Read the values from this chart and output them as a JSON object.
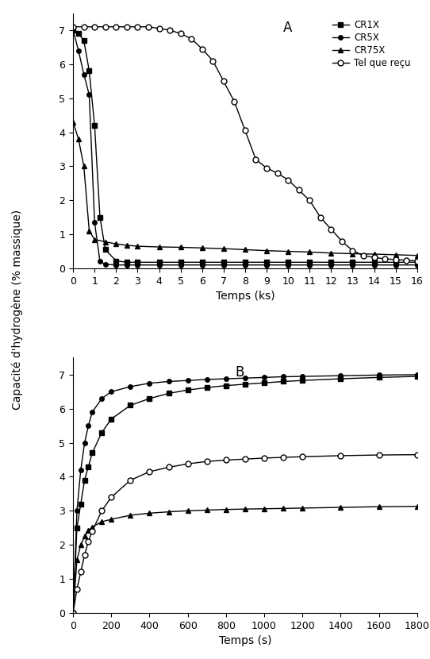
{
  "panel_A_label": "A",
  "panel_B_label": "B",
  "ylabel": "Capacité d'hydrogène (% massique)",
  "xlabel_A": "Temps (ks)",
  "xlabel_B": "Temps (s)",
  "legend_labels": [
    "CR1X",
    "CR5X",
    "CR75X",
    "Tel que reçu"
  ],
  "A": {
    "xlim": [
      0,
      16
    ],
    "ylim": [
      0,
      7.5
    ],
    "xticks": [
      0,
      1,
      2,
      3,
      4,
      5,
      6,
      7,
      8,
      9,
      10,
      11,
      12,
      13,
      14,
      15,
      16
    ],
    "yticks": [
      0,
      1,
      2,
      3,
      4,
      5,
      6,
      7
    ],
    "CR1X": {
      "x": [
        0,
        0.25,
        0.5,
        0.75,
        1.0,
        1.25,
        1.5,
        2.0,
        2.5,
        3.0,
        4.0,
        5.0,
        6.0,
        7.0,
        8.0,
        9.0,
        10.0,
        11.0,
        12.0,
        13.0,
        14.0,
        15.0,
        16.0
      ],
      "y": [
        7.0,
        6.9,
        6.7,
        5.8,
        4.2,
        1.5,
        0.55,
        0.22,
        0.18,
        0.18,
        0.18,
        0.18,
        0.18,
        0.18,
        0.18,
        0.18,
        0.18,
        0.18,
        0.18,
        0.18,
        0.18,
        0.18,
        0.18
      ]
    },
    "CR5X": {
      "x": [
        0,
        0.25,
        0.5,
        0.75,
        1.0,
        1.25,
        1.5,
        2.0,
        2.5,
        3.0,
        4.0,
        5.0,
        6.0,
        7.0,
        8.0,
        9.0,
        10.0,
        11.0,
        12.0,
        13.0,
        14.0,
        15.0,
        16.0
      ],
      "y": [
        7.0,
        6.4,
        5.7,
        5.1,
        1.35,
        0.2,
        0.12,
        0.1,
        0.1,
        0.1,
        0.1,
        0.1,
        0.1,
        0.1,
        0.1,
        0.1,
        0.1,
        0.1,
        0.1,
        0.1,
        0.1,
        0.1,
        0.1
      ]
    },
    "CR75X": {
      "x": [
        0,
        0.25,
        0.5,
        0.75,
        1.0,
        1.5,
        2.0,
        2.5,
        3.0,
        4.0,
        5.0,
        6.0,
        7.0,
        8.0,
        9.0,
        10.0,
        11.0,
        12.0,
        13.0,
        14.0,
        15.0,
        16.0
      ],
      "y": [
        4.3,
        3.8,
        3.0,
        1.1,
        0.85,
        0.78,
        0.72,
        0.68,
        0.65,
        0.63,
        0.62,
        0.6,
        0.58,
        0.55,
        0.52,
        0.5,
        0.48,
        0.45,
        0.43,
        0.42,
        0.4,
        0.38
      ]
    },
    "TQR": {
      "x": [
        0,
        0.5,
        1.0,
        1.5,
        2.0,
        2.5,
        3.0,
        3.5,
        4.0,
        4.5,
        5.0,
        5.5,
        6.0,
        6.5,
        7.0,
        7.5,
        8.0,
        8.5,
        9.0,
        9.5,
        10.0,
        10.5,
        11.0,
        11.5,
        12.0,
        12.5,
        13.0,
        13.5,
        14.0,
        14.5,
        15.0,
        15.5,
        16.0
      ],
      "y": [
        7.1,
        7.1,
        7.1,
        7.1,
        7.1,
        7.1,
        7.1,
        7.1,
        7.05,
        7.0,
        6.9,
        6.75,
        6.45,
        6.1,
        5.5,
        4.9,
        4.05,
        3.2,
        2.95,
        2.8,
        2.6,
        2.3,
        2.0,
        1.5,
        1.15,
        0.8,
        0.52,
        0.38,
        0.32,
        0.28,
        0.26,
        0.24,
        0.22
      ]
    }
  },
  "B": {
    "xlim": [
      0,
      1800
    ],
    "ylim": [
      0,
      7.5
    ],
    "xticks": [
      0,
      200,
      400,
      600,
      800,
      1000,
      1200,
      1400,
      1600,
      1800
    ],
    "yticks": [
      0,
      1,
      2,
      3,
      4,
      5,
      6,
      7
    ],
    "CR1X": {
      "x": [
        0,
        20,
        40,
        60,
        80,
        100,
        150,
        200,
        300,
        400,
        500,
        600,
        700,
        800,
        900,
        1000,
        1100,
        1200,
        1400,
        1600,
        1800
      ],
      "y": [
        0,
        2.5,
        3.2,
        3.9,
        4.3,
        4.7,
        5.3,
        5.7,
        6.1,
        6.3,
        6.45,
        6.55,
        6.62,
        6.68,
        6.72,
        6.76,
        6.8,
        6.83,
        6.88,
        6.92,
        6.95
      ]
    },
    "CR5X": {
      "x": [
        0,
        20,
        40,
        60,
        80,
        100,
        150,
        200,
        300,
        400,
        500,
        600,
        700,
        800,
        900,
        1000,
        1100,
        1200,
        1400,
        1600,
        1800
      ],
      "y": [
        0,
        3.0,
        4.2,
        5.0,
        5.5,
        5.9,
        6.3,
        6.5,
        6.65,
        6.75,
        6.8,
        6.83,
        6.86,
        6.88,
        6.9,
        6.92,
        6.94,
        6.95,
        6.97,
        6.99,
        7.0
      ]
    },
    "CR75X": {
      "x": [
        0,
        20,
        40,
        60,
        80,
        100,
        150,
        200,
        300,
        400,
        500,
        600,
        700,
        800,
        900,
        1000,
        1100,
        1200,
        1400,
        1600,
        1800
      ],
      "y": [
        0,
        1.55,
        2.0,
        2.25,
        2.42,
        2.52,
        2.68,
        2.75,
        2.87,
        2.93,
        2.97,
        3.0,
        3.02,
        3.04,
        3.05,
        3.06,
        3.07,
        3.08,
        3.1,
        3.12,
        3.13
      ]
    },
    "TQR": {
      "x": [
        0,
        20,
        40,
        60,
        80,
        100,
        150,
        200,
        300,
        400,
        500,
        600,
        700,
        800,
        900,
        1000,
        1100,
        1200,
        1400,
        1600,
        1800
      ],
      "y": [
        0,
        0.7,
        1.2,
        1.7,
        2.1,
        2.4,
        3.0,
        3.4,
        3.9,
        4.15,
        4.28,
        4.38,
        4.45,
        4.49,
        4.52,
        4.55,
        4.57,
        4.59,
        4.62,
        4.64,
        4.65
      ]
    }
  },
  "line_color": "#000000",
  "bg_color": "#ffffff"
}
